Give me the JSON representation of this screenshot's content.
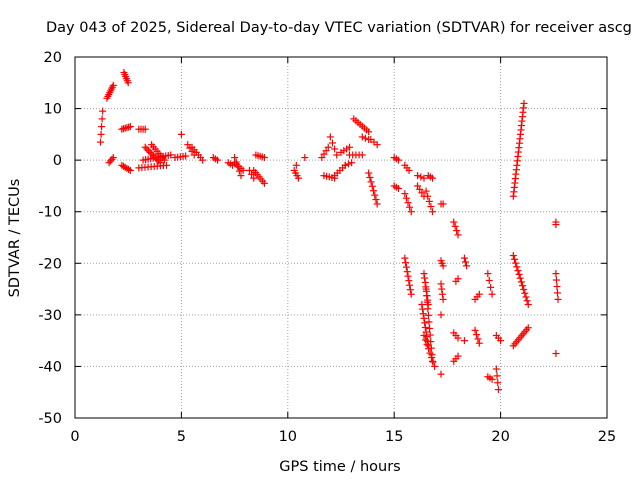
{
  "chart_data": {
    "type": "scatter",
    "title": "Day 043 of 2025, Sidereal Day-to-day VTEC variation (SDTVAR) for receiver ascg",
    "xlabel": "GPS time / hours",
    "ylabel": "SDTVAR / TECUs",
    "xlim": [
      0,
      25
    ],
    "ylim": [
      -50,
      20
    ],
    "xticks": [
      0,
      5,
      10,
      15,
      20,
      25
    ],
    "yticks": [
      -50,
      -40,
      -30,
      -20,
      -10,
      0,
      10,
      20
    ],
    "grid": true,
    "marker": "+",
    "marker_color": "#ff0000",
    "legend": "none",
    "series": [
      {
        "name": "SDTVAR",
        "tracks": [
          {
            "x0": 1.2,
            "y0": 3.5,
            "x1": 1.3,
            "y1": 9.5,
            "n": 5
          },
          {
            "x0": 1.5,
            "y0": 12.0,
            "x1": 1.8,
            "y1": 14.5,
            "n": 8
          },
          {
            "x0": 1.6,
            "y0": -0.5,
            "x1": 1.8,
            "y1": 0.5,
            "n": 4
          },
          {
            "x0": 2.3,
            "y0": 17.0,
            "x1": 2.5,
            "y1": 15.0,
            "n": 6
          },
          {
            "x0": 2.2,
            "y0": 6.0,
            "x1": 2.6,
            "y1": 6.5,
            "n": 6
          },
          {
            "x0": 2.2,
            "y0": -1.0,
            "x1": 2.6,
            "y1": -2.0,
            "n": 6
          },
          {
            "x0": 3.0,
            "y0": 6.0,
            "x1": 3.3,
            "y1": 6.0,
            "n": 4
          },
          {
            "x0": 3.0,
            "y0": -1.5,
            "x1": 4.3,
            "y1": -1.0,
            "n": 10
          },
          {
            "x0": 3.2,
            "y0": 0.0,
            "x1": 4.5,
            "y1": 1.0,
            "n": 12
          },
          {
            "x0": 3.3,
            "y0": 2.5,
            "x1": 4.0,
            "y1": -0.5,
            "n": 10
          },
          {
            "x0": 3.6,
            "y0": 3.0,
            "x1": 4.2,
            "y1": 0.0,
            "n": 8
          },
          {
            "x0": 4.7,
            "y0": 0.5,
            "x1": 5.2,
            "y1": 0.8,
            "n": 5
          },
          {
            "x0": 5.0,
            "y0": 5.0,
            "x1": 5.0,
            "y1": 5.0,
            "n": 1
          },
          {
            "x0": 5.3,
            "y0": 3.0,
            "x1": 5.6,
            "y1": 1.0,
            "n": 4
          },
          {
            "x0": 5.5,
            "y0": 2.5,
            "x1": 6.0,
            "y1": 0.0,
            "n": 6
          },
          {
            "x0": 6.5,
            "y0": 0.5,
            "x1": 6.7,
            "y1": 0.0,
            "n": 3
          },
          {
            "x0": 7.2,
            "y0": -0.5,
            "x1": 7.4,
            "y1": -1.0,
            "n": 3
          },
          {
            "x0": 7.5,
            "y0": -0.5,
            "x1": 7.9,
            "y1": -2.0,
            "n": 5
          },
          {
            "x0": 7.5,
            "y0": 0.5,
            "x1": 7.8,
            "y1": -3.0,
            "n": 5
          },
          {
            "x0": 8.2,
            "y0": -2.0,
            "x1": 8.4,
            "y1": -3.5,
            "n": 3
          },
          {
            "x0": 8.5,
            "y0": 1.0,
            "x1": 8.9,
            "y1": 0.5,
            "n": 5
          },
          {
            "x0": 8.4,
            "y0": -2.0,
            "x1": 8.9,
            "y1": -4.5,
            "n": 7
          },
          {
            "x0": 10.3,
            "y0": -2.0,
            "x1": 10.5,
            "y1": -3.5,
            "n": 4
          },
          {
            "x0": 10.4,
            "y0": -1.0,
            "x1": 10.4,
            "y1": -1.0,
            "n": 1
          },
          {
            "x0": 10.8,
            "y0": 0.5,
            "x1": 10.8,
            "y1": 0.5,
            "n": 1
          },
          {
            "x0": 11.6,
            "y0": 0.5,
            "x1": 11.9,
            "y1": 2.5,
            "n": 4
          },
          {
            "x0": 11.7,
            "y0": -3.0,
            "x1": 12.2,
            "y1": -3.5,
            "n": 5
          },
          {
            "x0": 12.0,
            "y0": 4.5,
            "x1": 12.3,
            "y1": 1.0,
            "n": 4
          },
          {
            "x0": 12.2,
            "y0": -3.0,
            "x1": 12.7,
            "y1": -1.0,
            "n": 5
          },
          {
            "x0": 12.5,
            "y0": 1.5,
            "x1": 12.9,
            "y1": 2.5,
            "n": 4
          },
          {
            "x0": 12.7,
            "y0": -1.0,
            "x1": 13.0,
            "y1": -0.5,
            "n": 3
          },
          {
            "x0": 12.9,
            "y0": 1.0,
            "x1": 13.5,
            "y1": 1.0,
            "n": 5
          },
          {
            "x0": 13.1,
            "y0": 8.0,
            "x1": 13.8,
            "y1": 5.5,
            "n": 8
          },
          {
            "x0": 13.5,
            "y0": 4.5,
            "x1": 13.8,
            "y1": 4.0,
            "n": 3
          },
          {
            "x0": 13.8,
            "y0": -2.5,
            "x1": 14.2,
            "y1": -8.5,
            "n": 8
          },
          {
            "x0": 13.9,
            "y0": 4.0,
            "x1": 14.2,
            "y1": 3.0,
            "n": 3
          },
          {
            "x0": 15.0,
            "y0": 0.5,
            "x1": 15.2,
            "y1": 0.0,
            "n": 3
          },
          {
            "x0": 15.0,
            "y0": -5.0,
            "x1": 15.2,
            "y1": -5.5,
            "n": 3
          },
          {
            "x0": 15.5,
            "y0": -1.0,
            "x1": 15.7,
            "y1": -2.0,
            "n": 3
          },
          {
            "x0": 15.5,
            "y0": -6.5,
            "x1": 15.8,
            "y1": -10.0,
            "n": 5
          },
          {
            "x0": 15.5,
            "y0": -19.0,
            "x1": 15.8,
            "y1": -26.0,
            "n": 9
          },
          {
            "x0": 16.1,
            "y0": -3.0,
            "x1": 16.4,
            "y1": -3.5,
            "n": 3
          },
          {
            "x0": 16.1,
            "y0": -5.0,
            "x1": 16.4,
            "y1": -7.0,
            "n": 4
          },
          {
            "x0": 16.3,
            "y0": -28.0,
            "x1": 16.6,
            "y1": -36.0,
            "n": 10
          },
          {
            "x0": 16.4,
            "y0": -22.0,
            "x1": 16.6,
            "y1": -28.0,
            "n": 8
          },
          {
            "x0": 16.5,
            "y0": -25.0,
            "x1": 16.8,
            "y1": -39.0,
            "n": 12
          },
          {
            "x0": 16.4,
            "y0": -34.0,
            "x1": 16.9,
            "y1": -40.0,
            "n": 8
          },
          {
            "x0": 16.5,
            "y0": -6.0,
            "x1": 16.8,
            "y1": -10.0,
            "n": 5
          },
          {
            "x0": 16.6,
            "y0": -3.0,
            "x1": 16.8,
            "y1": -3.5,
            "n": 3
          },
          {
            "x0": 17.2,
            "y0": -8.5,
            "x1": 17.3,
            "y1": -8.5,
            "n": 2
          },
          {
            "x0": 17.2,
            "y0": -24.0,
            "x1": 17.3,
            "y1": -27.0,
            "n": 4
          },
          {
            "x0": 17.2,
            "y0": -19.5,
            "x1": 17.3,
            "y1": -20.5,
            "n": 3
          },
          {
            "x0": 17.2,
            "y0": -30.0,
            "x1": 17.2,
            "y1": -30.0,
            "n": 1
          },
          {
            "x0": 17.2,
            "y0": -41.5,
            "x1": 17.2,
            "y1": -41.5,
            "n": 1
          },
          {
            "x0": 17.8,
            "y0": -12.0,
            "x1": 18.0,
            "y1": -14.5,
            "n": 4
          },
          {
            "x0": 17.9,
            "y0": -23.5,
            "x1": 18.0,
            "y1": -23.0,
            "n": 2
          },
          {
            "x0": 17.8,
            "y0": -33.5,
            "x1": 18.0,
            "y1": -34.5,
            "n": 3
          },
          {
            "x0": 17.8,
            "y0": -39.0,
            "x1": 18.0,
            "y1": -38.0,
            "n": 3
          },
          {
            "x0": 18.3,
            "y0": -19.0,
            "x1": 18.4,
            "y1": -20.5,
            "n": 3
          },
          {
            "x0": 18.3,
            "y0": -35.0,
            "x1": 18.3,
            "y1": -35.0,
            "n": 1
          },
          {
            "x0": 18.8,
            "y0": -33.0,
            "x1": 19.0,
            "y1": -35.5,
            "n": 4
          },
          {
            "x0": 18.8,
            "y0": -27.0,
            "x1": 19.0,
            "y1": -26.0,
            "n": 3
          },
          {
            "x0": 19.4,
            "y0": -22.0,
            "x1": 19.6,
            "y1": -26.0,
            "n": 4
          },
          {
            "x0": 19.4,
            "y0": -42.0,
            "x1": 19.6,
            "y1": -42.5,
            "n": 3
          },
          {
            "x0": 19.8,
            "y0": -34.0,
            "x1": 20.0,
            "y1": -35.0,
            "n": 3
          },
          {
            "x0": 19.8,
            "y0": -40.5,
            "x1": 19.9,
            "y1": -44.5,
            "n": 4
          },
          {
            "x0": 20.6,
            "y0": -7.0,
            "x1": 21.1,
            "y1": 11.0,
            "n": 22
          },
          {
            "x0": 20.6,
            "y0": -18.5,
            "x1": 21.3,
            "y1": -28.0,
            "n": 14
          },
          {
            "x0": 20.6,
            "y0": -36.0,
            "x1": 21.3,
            "y1": -32.5,
            "n": 10
          },
          {
            "x0": 22.6,
            "y0": -12.5,
            "x1": 22.6,
            "y1": -12.0,
            "n": 2
          },
          {
            "x0": 22.6,
            "y0": -22.0,
            "x1": 22.7,
            "y1": -27.0,
            "n": 5
          },
          {
            "x0": 22.6,
            "y0": -37.5,
            "x1": 22.6,
            "y1": -37.5,
            "n": 1
          }
        ]
      }
    ]
  }
}
